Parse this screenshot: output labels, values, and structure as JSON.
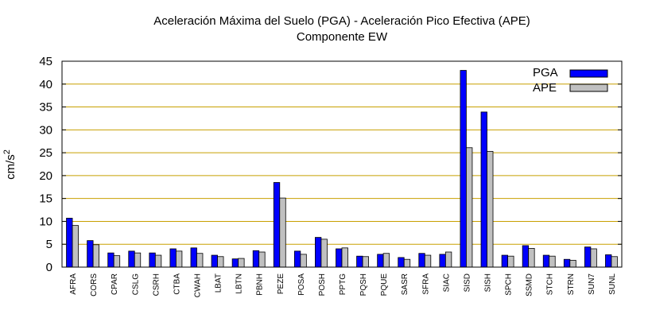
{
  "chart_data": {
    "type": "bar",
    "title": "Aceleración Máxima del Suelo (PGA) -  Aceleración Pico Efectiva (APE)",
    "subtitle": "Componente EW",
    "ylabel_base": "cm/s",
    "ylabel_exp": "2",
    "ylim": [
      0,
      45
    ],
    "yticks": [
      0,
      5,
      10,
      15,
      20,
      25,
      30,
      35,
      40,
      45
    ],
    "grid": true,
    "legend_position": "top-right",
    "categories": [
      "AFRA",
      "CORS",
      "CPAR",
      "CSLG",
      "CSRH",
      "CTBA",
      "CWAH",
      "LBAT",
      "LBTN",
      "PBNH",
      "PEZE",
      "POSA",
      "POSH",
      "PPTG",
      "PQSH",
      "PQUE",
      "SASR",
      "SFRA",
      "SIAC",
      "SISD",
      "SISH",
      "SPCH",
      "SSMD",
      "STCH",
      "STRN",
      "SUN7",
      "SUNL"
    ],
    "series": [
      {
        "name": "PGA",
        "color": "#0000ff",
        "values": [
          10.7,
          5.8,
          3.1,
          3.5,
          3.1,
          4.0,
          4.2,
          2.6,
          1.8,
          3.6,
          18.5,
          3.5,
          6.5,
          4.0,
          2.4,
          2.8,
          2.1,
          3.0,
          2.8,
          43.0,
          33.9,
          2.6,
          4.7,
          2.6,
          1.7,
          4.4,
          2.7
        ]
      },
      {
        "name": "APE",
        "color": "#c0c0c0",
        "values": [
          9.1,
          4.9,
          2.5,
          3.1,
          2.6,
          3.5,
          3.0,
          2.3,
          1.9,
          3.3,
          15.1,
          2.8,
          6.1,
          4.2,
          2.3,
          3.0,
          1.7,
          2.6,
          3.3,
          26.1,
          25.3,
          2.4,
          4.1,
          2.4,
          1.5,
          4.0,
          2.3
        ]
      }
    ],
    "grid_color": "#c8a000"
  }
}
